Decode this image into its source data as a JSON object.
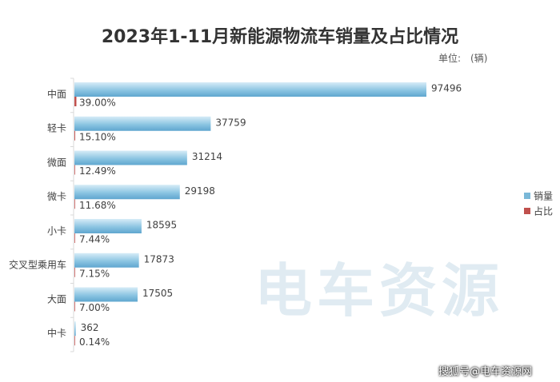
{
  "chart_data": {
    "type": "bar",
    "orientation": "horizontal",
    "title": "2023年1-11月新能源物流车销量及占比情况",
    "unit_label": "单位:",
    "unit_value": "(辆)",
    "categories": [
      "中面",
      "轻卡",
      "微面",
      "微卡",
      "小卡",
      "交叉型乘用车",
      "大面",
      "中卡"
    ],
    "series": [
      {
        "name": "销量",
        "values": [
          97496,
          37759,
          31214,
          29198,
          18595,
          17873,
          17505,
          362
        ],
        "labels": [
          "97496",
          "37759",
          "31214",
          "29198",
          "18595",
          "17873",
          "17505",
          "362"
        ],
        "color": "#7ab8d8"
      },
      {
        "name": "占比",
        "values": [
          39.0,
          15.1,
          12.49,
          11.68,
          7.44,
          7.15,
          7.0,
          0.14
        ],
        "labels": [
          "39.00%",
          "15.10%",
          "12.49%",
          "11.68%",
          "7.44%",
          "7.15%",
          "7.00%",
          "0.14%"
        ],
        "color": "#c0504d"
      }
    ],
    "legend_position": "right",
    "grid": false
  },
  "watermark": "电车资源",
  "source_tag": "搜狐号@电车资源网"
}
